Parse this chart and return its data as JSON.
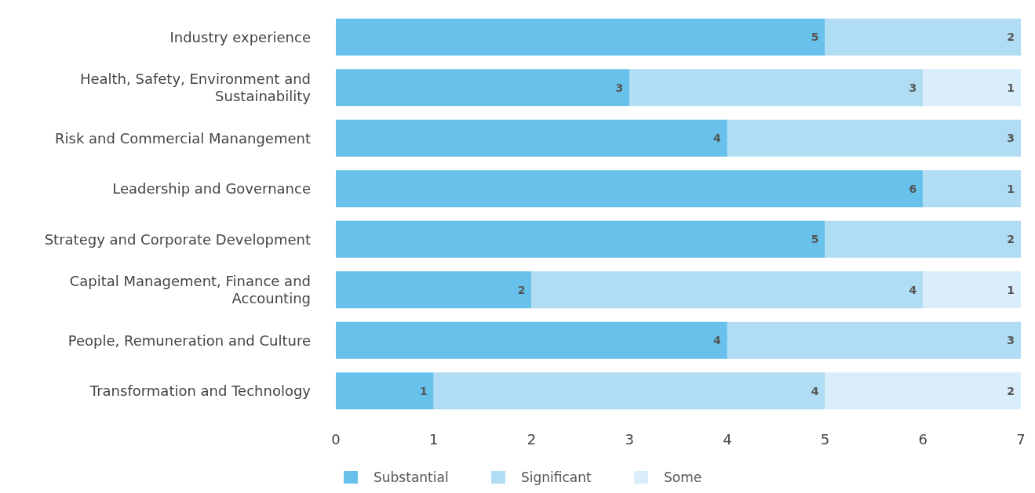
{
  "chart_data": {
    "type": "bar",
    "orientation": "horizontal",
    "stacked": true,
    "categories": [
      "Industry experience",
      "Health, Safety, Environment and Sustainability",
      "Risk and Commercial Manangement",
      "Leadership and Governance",
      "Strategy and Corporate Development",
      "Capital Management, Finance and Accounting",
      "People, Remuneration and Culture",
      "Transformation and Technology"
    ],
    "series": [
      {
        "name": "Substantial",
        "color": "#67c1ea",
        "values": [
          5,
          3,
          4,
          6,
          5,
          2,
          4,
          1
        ]
      },
      {
        "name": "Significant",
        "color": "#b0dcf4",
        "values": [
          2,
          3,
          3,
          1,
          2,
          4,
          3,
          4
        ]
      },
      {
        "name": "Some",
        "color": "#d9edfa",
        "values": [
          null,
          1,
          null,
          null,
          null,
          1,
          null,
          2
        ]
      }
    ],
    "xlim": [
      0,
      7
    ],
    "xticks": [
      0,
      1,
      2,
      3,
      4,
      5,
      6,
      7
    ],
    "data_labels": true,
    "legend": "bottom",
    "grid": false
  }
}
